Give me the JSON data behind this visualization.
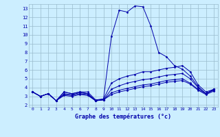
{
  "bg_color": "#cceeff",
  "grid_color": "#99bbcc",
  "line_color": "#0000aa",
  "xlabel": "Graphe des températures (°c)",
  "xlim": [
    -0.5,
    23.5
  ],
  "ylim": [
    1.8,
    13.5
  ],
  "yticks": [
    2,
    3,
    4,
    5,
    6,
    7,
    8,
    9,
    10,
    11,
    12,
    13
  ],
  "xticks": [
    0,
    1,
    2,
    3,
    4,
    5,
    6,
    7,
    8,
    9,
    10,
    11,
    12,
    13,
    14,
    15,
    16,
    17,
    18,
    19,
    20,
    21,
    22,
    23
  ],
  "series": [
    {
      "x": [
        0,
        1,
        2,
        3,
        4,
        5,
        6,
        7,
        8,
        9,
        10,
        11,
        12,
        13,
        14,
        15,
        16,
        17,
        18,
        19,
        20,
        21,
        22,
        23
      ],
      "y": [
        3.5,
        3.0,
        3.3,
        2.5,
        3.5,
        3.3,
        3.5,
        3.3,
        2.5,
        2.7,
        9.8,
        12.8,
        12.6,
        13.3,
        13.2,
        11.0,
        8.0,
        7.5,
        6.5,
        6.1,
        5.3,
        4.1,
        3.3,
        3.8
      ]
    },
    {
      "x": [
        0,
        1,
        2,
        3,
        4,
        5,
        6,
        7,
        8,
        9,
        10,
        11,
        12,
        13,
        14,
        15,
        16,
        17,
        18,
        19,
        20,
        21,
        22,
        23
      ],
      "y": [
        3.5,
        3.0,
        3.3,
        2.5,
        3.5,
        3.3,
        3.5,
        3.5,
        2.6,
        2.7,
        4.5,
        5.0,
        5.3,
        5.5,
        5.8,
        5.8,
        6.0,
        6.2,
        6.3,
        6.5,
        5.8,
        4.3,
        3.5,
        3.8
      ]
    },
    {
      "x": [
        0,
        1,
        2,
        3,
        4,
        5,
        6,
        7,
        8,
        9,
        10,
        11,
        12,
        13,
        14,
        15,
        16,
        17,
        18,
        19,
        20,
        21,
        22,
        23
      ],
      "y": [
        3.5,
        3.0,
        3.3,
        2.5,
        3.3,
        3.2,
        3.4,
        3.3,
        2.5,
        2.6,
        3.8,
        4.2,
        4.5,
        4.7,
        4.9,
        5.0,
        5.2,
        5.4,
        5.5,
        5.6,
        5.0,
        4.0,
        3.3,
        3.8
      ]
    },
    {
      "x": [
        0,
        1,
        2,
        3,
        4,
        5,
        6,
        7,
        8,
        9,
        10,
        11,
        12,
        13,
        14,
        15,
        16,
        17,
        18,
        19,
        20,
        21,
        22,
        23
      ],
      "y": [
        3.5,
        3.0,
        3.3,
        2.5,
        3.2,
        3.1,
        3.3,
        3.2,
        2.5,
        2.6,
        3.4,
        3.7,
        3.9,
        4.1,
        4.3,
        4.4,
        4.6,
        4.8,
        4.9,
        5.0,
        4.5,
        3.8,
        3.3,
        3.7
      ]
    },
    {
      "x": [
        0,
        1,
        2,
        3,
        4,
        5,
        6,
        7,
        8,
        9,
        10,
        11,
        12,
        13,
        14,
        15,
        16,
        17,
        18,
        19,
        20,
        21,
        22,
        23
      ],
      "y": [
        3.5,
        3.0,
        3.3,
        2.5,
        3.1,
        3.0,
        3.2,
        3.1,
        2.5,
        2.6,
        3.2,
        3.5,
        3.7,
        3.9,
        4.1,
        4.2,
        4.4,
        4.6,
        4.7,
        4.8,
        4.4,
        3.7,
        3.2,
        3.6
      ]
    }
  ]
}
